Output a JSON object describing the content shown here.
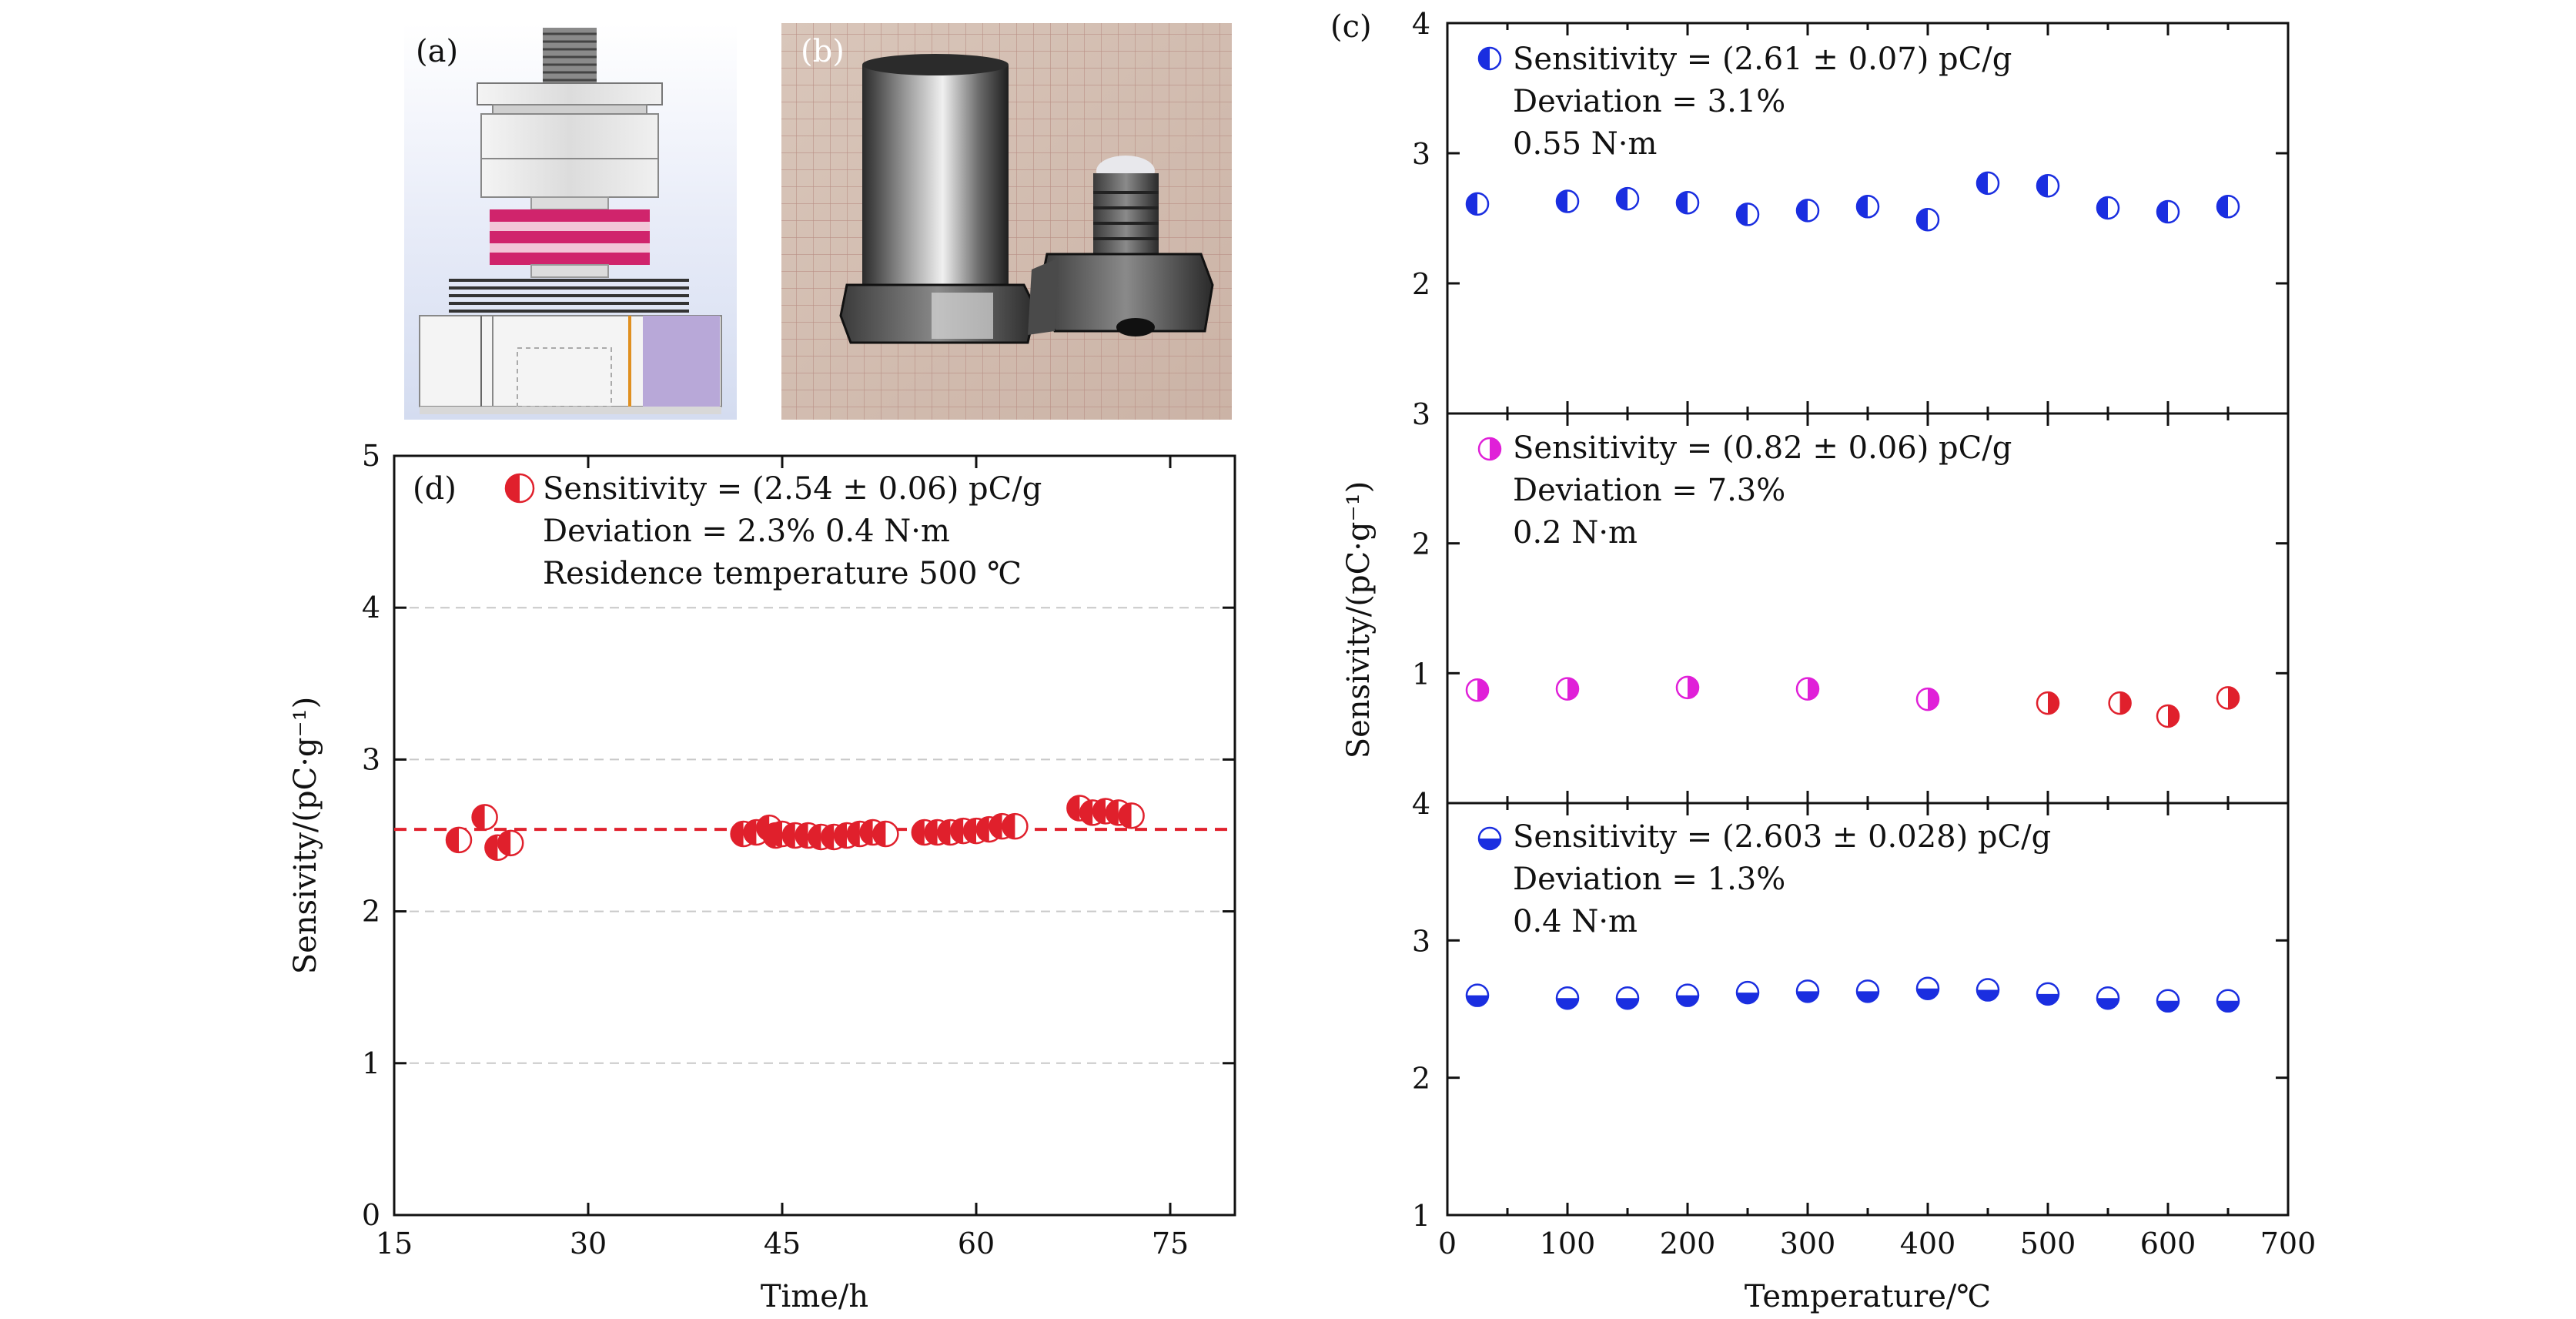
{
  "panel_labels": {
    "a": "(a)",
    "b": "(b)",
    "c": "(c)",
    "d": "(d)"
  },
  "photo_a": {
    "description": "sensor assembly drawing: threaded stud, pink piezo rings, hex base"
  },
  "photo_b": {
    "description": "metal accelerometer housing and base on grid paper"
  },
  "colors": {
    "red": "#e0202c",
    "blue": "#1a2ee0",
    "magenta": "#e020d8",
    "axis": "#111111",
    "grid": "#c8c8c8"
  },
  "chart_data": [
    {
      "id": "d",
      "type": "scatter",
      "xlabel": "Time/h",
      "ylabel": "Sensivity/(pC·g⁻¹)",
      "xlim": [
        15,
        80
      ],
      "ylim": [
        0,
        5
      ],
      "xticks": [
        15,
        30,
        45,
        60,
        75
      ],
      "yticks": [
        0,
        1,
        2,
        3,
        4,
        5
      ],
      "grid_y": [
        1,
        2,
        3,
        4
      ],
      "reference_line": 2.54,
      "legend": [
        "Sensitivity = (2.54 ± 0.06) pC/g",
        "Deviation = 2.3%  0.4 N·m",
        "Residence temperature 500 ℃"
      ],
      "series": [
        {
          "name": "Sensitivity",
          "marker": "half-filled-left",
          "color": "#e0202c",
          "x": [
            20,
            22,
            23,
            24,
            42,
            43,
            44,
            44.5,
            45,
            46,
            47,
            48,
            49,
            50,
            51,
            52,
            53,
            56,
            57,
            58,
            59,
            60,
            61,
            62,
            63,
            68,
            69,
            70,
            71,
            72
          ],
          "y": [
            2.47,
            2.62,
            2.42,
            2.45,
            2.51,
            2.52,
            2.55,
            2.5,
            2.51,
            2.5,
            2.5,
            2.49,
            2.49,
            2.5,
            2.51,
            2.52,
            2.51,
            2.52,
            2.52,
            2.52,
            2.53,
            2.53,
            2.54,
            2.56,
            2.56,
            2.68,
            2.65,
            2.66,
            2.65,
            2.63
          ]
        }
      ]
    },
    {
      "id": "c-top",
      "type": "scatter",
      "xlabel": "",
      "ylabel": "",
      "xlim": [
        0,
        700
      ],
      "ylim": [
        1,
        4
      ],
      "yticks": [
        2,
        3,
        4
      ],
      "legend": [
        "Sensitivity = (2.61 ± 0.07) pC/g",
        "Deviation = 3.1%",
        "0.55 N·m"
      ],
      "series": [
        {
          "name": "Sensitivity 0.55 N·m",
          "marker": "half-filled-left",
          "color": "#1a2ee0",
          "x": [
            25,
            100,
            150,
            200,
            250,
            300,
            350,
            400,
            450,
            500,
            550,
            600,
            650
          ],
          "y": [
            2.61,
            2.63,
            2.65,
            2.62,
            2.53,
            2.56,
            2.59,
            2.49,
            2.77,
            2.75,
            2.58,
            2.55,
            2.59
          ]
        }
      ]
    },
    {
      "id": "c-middle",
      "type": "scatter",
      "xlabel": "",
      "ylabel": "Sensivity/(pC·g⁻¹)",
      "xlim": [
        0,
        700
      ],
      "ylim": [
        0,
        3
      ],
      "yticks": [
        1,
        2,
        3
      ],
      "legend": [
        "Sensitivity = (0.82 ± 0.06) pC/g",
        "Deviation = 7.3%",
        "0.2 N·m"
      ],
      "series": [
        {
          "name": "Sensitivity 0.2 N·m",
          "marker": "half-filled-right",
          "color": "#e020d8",
          "point_colors": [
            "#e020d8",
            "#e020d8",
            "#e020d8",
            "#e020d8",
            "#e020d8",
            "#e0202c",
            "#e0202c",
            "#e0202c",
            "#e0202c"
          ],
          "x": [
            25,
            100,
            200,
            300,
            400,
            500,
            560,
            600,
            650
          ],
          "y": [
            0.87,
            0.88,
            0.89,
            0.88,
            0.8,
            0.77,
            0.77,
            0.67,
            0.81
          ]
        }
      ]
    },
    {
      "id": "c-bottom",
      "type": "scatter",
      "xlabel": "Temperature/℃",
      "ylabel": "",
      "xlim": [
        0,
        700
      ],
      "ylim": [
        1,
        4
      ],
      "xticks": [
        0,
        100,
        200,
        300,
        400,
        500,
        600,
        700
      ],
      "yticks": [
        1,
        2,
        3,
        4
      ],
      "legend": [
        "Sensitivity = (2.603 ± 0.028) pC/g",
        "Deviation = 1.3%",
        "0.4 N·m"
      ],
      "series": [
        {
          "name": "Sensitivity 0.4 N·m",
          "marker": "half-filled-bottom",
          "color": "#1a2ee0",
          "x": [
            25,
            100,
            150,
            200,
            250,
            300,
            350,
            400,
            450,
            500,
            550,
            600,
            650
          ],
          "y": [
            2.6,
            2.58,
            2.58,
            2.6,
            2.62,
            2.63,
            2.63,
            2.65,
            2.64,
            2.61,
            2.58,
            2.56,
            2.56
          ]
        }
      ]
    }
  ]
}
